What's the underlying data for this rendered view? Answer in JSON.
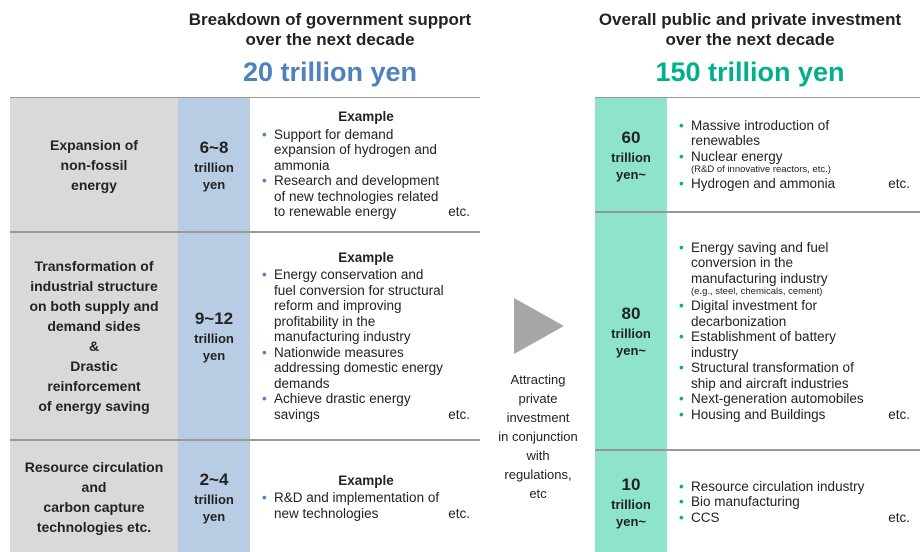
{
  "left": {
    "title_lines": [
      "Breakdown of government support",
      "over the next decade"
    ],
    "total": "20 trillion yen",
    "rows": [
      {
        "category": [
          "Expansion of",
          "non-fossil",
          "energy"
        ],
        "amount": "6~8",
        "unit": [
          "trillion",
          "yen"
        ],
        "example_heading": "Example",
        "bullets": [
          {
            "lines": [
              "Support for demand",
              "expansion of hydrogen and",
              "ammonia"
            ]
          },
          {
            "lines": [
              "Research and development",
              "of new technologies related",
              "to renewable energy"
            ],
            "etc": "etc."
          }
        ]
      },
      {
        "category": [
          "Transformation of",
          "industrial structure",
          "on both supply and",
          "demand sides",
          "&",
          "Drastic",
          "reinforcement",
          "of energy saving"
        ],
        "amount": "9~12",
        "unit": [
          "trillion",
          "yen"
        ],
        "example_heading": "Example",
        "bullets": [
          {
            "lines": [
              "Energy conservation and",
              "fuel conversion for structural",
              "reform and improving",
              "profitability in the",
              "manufacturing industry"
            ]
          },
          {
            "lines": [
              "Nationwide measures",
              "addressing domestic energy",
              "demands"
            ]
          },
          {
            "lines": [
              "Achieve drastic energy",
              "savings"
            ],
            "etc": "etc."
          }
        ]
      },
      {
        "category": [
          "Resource circulation",
          "and",
          "carbon capture",
          "technologies etc."
        ],
        "amount": "2~4",
        "unit": [
          "trillion",
          "yen"
        ],
        "example_heading": "Example",
        "bullets": [
          {
            "lines": [
              "R&D and implementation of",
              "new technologies"
            ],
            "etc": "etc."
          }
        ]
      }
    ]
  },
  "middle": {
    "lines": [
      "Attracting",
      "private",
      "investment",
      "in conjunction",
      "with",
      "regulations,",
      "etc"
    ]
  },
  "right": {
    "title_lines": [
      "Overall public and private investment",
      "over the next decade"
    ],
    "total": "150 trillion yen",
    "rows": [
      {
        "amount": "60",
        "unit": [
          "trillion",
          "yen~"
        ],
        "bullets": [
          {
            "lines": [
              "Massive introduction of",
              "renewables"
            ]
          },
          {
            "lines": [
              "Nuclear energy"
            ],
            "note": "(R&D of innovative reactors, etc.)"
          },
          {
            "lines": [
              "Hydrogen and ammonia"
            ],
            "etc": "etc."
          }
        ]
      },
      {
        "amount": "80",
        "unit": [
          "trillion",
          "yen~"
        ],
        "bullets": [
          {
            "lines": [
              "Energy saving and fuel",
              "conversion in the",
              "manufacturing industry"
            ],
            "note": "(e.g., steel, chemicals, cement)"
          },
          {
            "lines": [
              "Digital investment for",
              "decarbonization"
            ]
          },
          {
            "lines": [
              "Establishment of battery",
              "industry"
            ]
          },
          {
            "lines": [
              "Structural transformation of",
              "ship and aircraft industries"
            ]
          },
          {
            "lines": [
              "Next-generation automobiles"
            ]
          },
          {
            "lines": [
              "Housing and Buildings"
            ],
            "etc": "etc."
          }
        ]
      },
      {
        "amount": "10",
        "unit": [
          "trillion",
          "yen~"
        ],
        "bullets": [
          {
            "lines": [
              "Resource circulation industry"
            ]
          },
          {
            "lines": [
              "Bio manufacturing"
            ]
          },
          {
            "lines": [
              "CCS"
            ],
            "etc": "etc."
          }
        ]
      }
    ]
  }
}
